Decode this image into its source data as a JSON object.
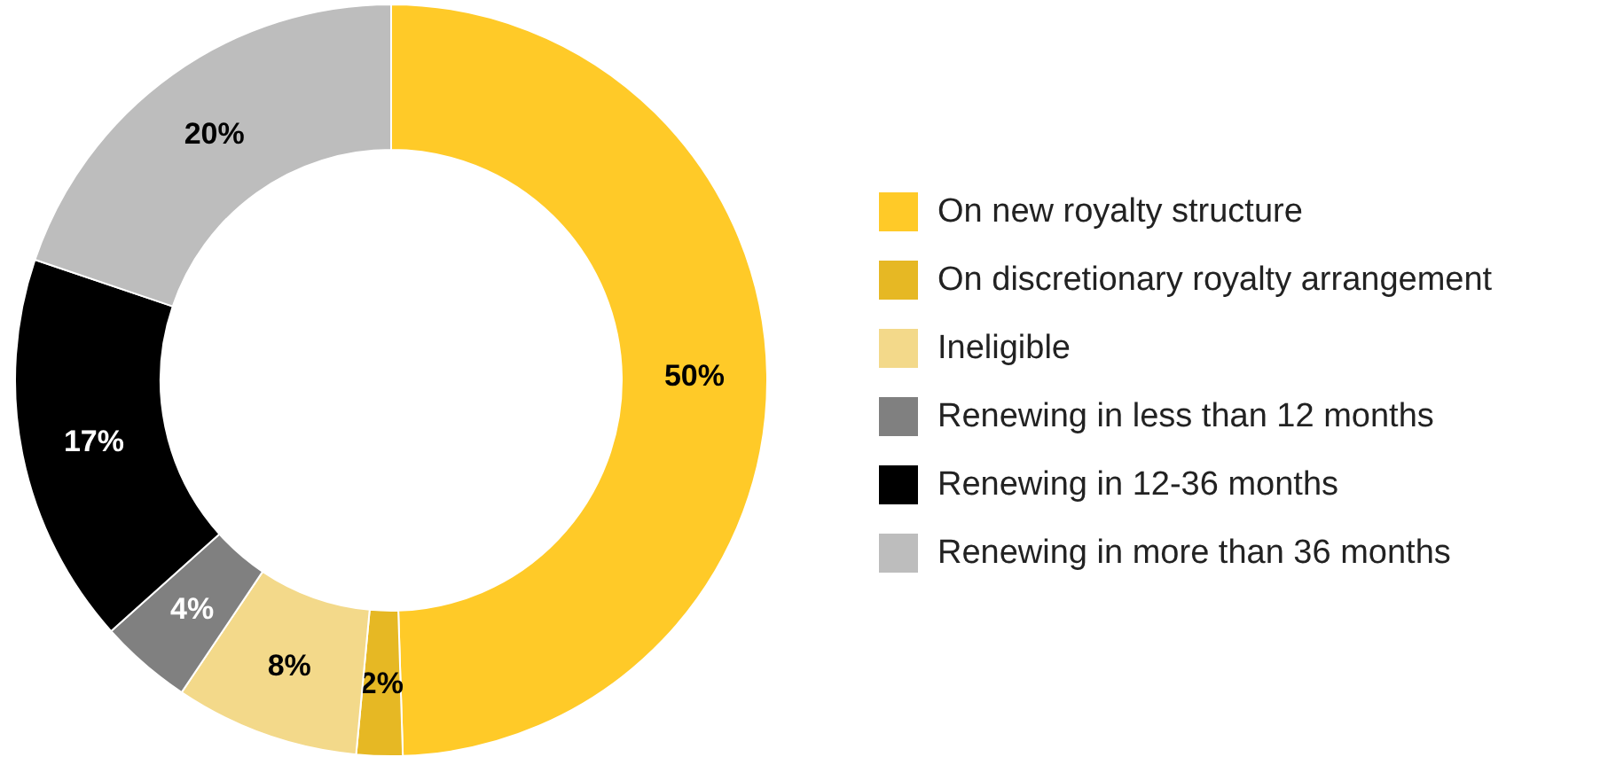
{
  "chart_data": {
    "type": "donut",
    "categories": [
      "On new royalty structure",
      "On discretionary royalty arrangement",
      "Ineligible",
      "Renewing in less than 12 months",
      "Renewing in 12-36 months",
      "Renewing in more than 36 months"
    ],
    "values": [
      50,
      2,
      8,
      4,
      17,
      20
    ],
    "colors": [
      "#ffca28",
      "#e6b824",
      "#f3d98a",
      "#808080",
      "#000000",
      "#bdbdbd"
    ],
    "value_labels": [
      "50%",
      "2%",
      "8%",
      "4%",
      "17%",
      "20%"
    ],
    "legend": "right"
  }
}
